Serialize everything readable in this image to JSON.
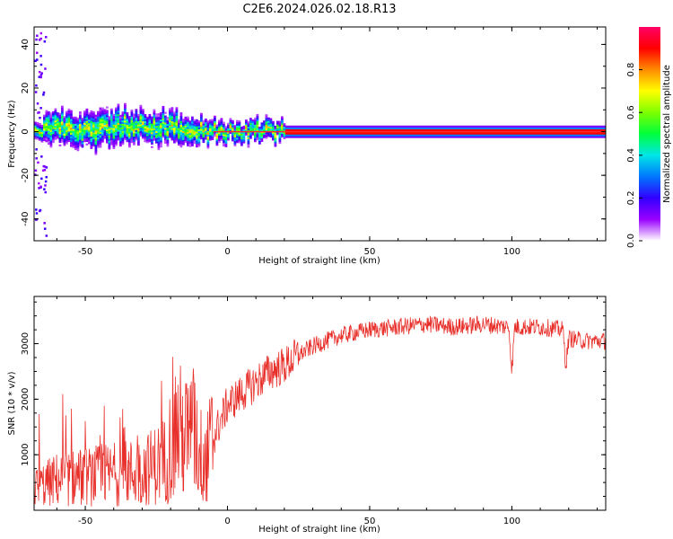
{
  "title": "C2E6.2024.026.02.18.R13",
  "chart_data": [
    {
      "type": "heatmap",
      "xlabel": "Height of straight line (km)",
      "ylabel": "Frequency (Hz)",
      "xlim": [
        -68,
        133
      ],
      "ylim": [
        -50,
        48
      ],
      "x_ticks": [
        -50,
        0,
        50,
        100
      ],
      "y_ticks": [
        -40,
        -20,
        0,
        20,
        40
      ],
      "signal": {
        "description_points": [
          {
            "x": -65,
            "freq": 2,
            "halfwidth": 5
          },
          {
            "x": -50,
            "freq": 1,
            "halfwidth": 6
          },
          {
            "x": -40,
            "freq": 2,
            "halfwidth": 6
          },
          {
            "x": -30,
            "freq": 3,
            "halfwidth": 5
          },
          {
            "x": -20,
            "freq": 2,
            "halfwidth": 5
          },
          {
            "x": -10,
            "freq": 1,
            "halfwidth": 4
          },
          {
            "x": 0,
            "freq": 0,
            "halfwidth": 2
          },
          {
            "x": 10,
            "freq": 1,
            "halfwidth": 3
          },
          {
            "x": 20,
            "freq": 0,
            "halfwidth": 2
          },
          {
            "x": 50,
            "freq": 0,
            "halfwidth": 2
          },
          {
            "x": 100,
            "freq": 0,
            "halfwidth": 2
          },
          {
            "x": 133,
            "freq": 0,
            "halfwidth": 2
          }
        ]
      },
      "colorbar": {
        "label": "Normalized spectral amplitude",
        "range": [
          0,
          1
        ],
        "ticks": [
          "0.0",
          "0.2",
          "0.4",
          "0.6",
          "0.8"
        ],
        "colormap": [
          "#ffffff",
          "#9a00ff",
          "#3200ff",
          "#0078ff",
          "#00e6e6",
          "#00ff3c",
          "#7dff00",
          "#ffff00",
          "#ff8c00",
          "#ff0000",
          "#ff0066"
        ]
      }
    },
    {
      "type": "line",
      "xlabel": "Height of straight line (km)",
      "ylabel": "SNR (10 * v/v)",
      "xlim": [
        -68,
        133
      ],
      "ylim": [
        0,
        3850
      ],
      "x_ticks": [
        -50,
        0,
        50,
        100
      ],
      "y_ticks": [
        1000,
        2000,
        3000
      ],
      "color": "#e8302b",
      "series": [
        {
          "name": "SNR",
          "x": [
            -68,
            -60,
            -50,
            -40,
            -30,
            -22,
            -18,
            -15,
            -12,
            -8,
            -5,
            0,
            5,
            10,
            15,
            20,
            25,
            30,
            40,
            50,
            60,
            70,
            80,
            90,
            99,
            100,
            101,
            110,
            118,
            119,
            120,
            125,
            133
          ],
          "y": [
            400,
            550,
            600,
            650,
            700,
            900,
            1500,
            1300,
            1400,
            800,
            1300,
            1900,
            2100,
            2300,
            2500,
            2600,
            2800,
            2950,
            3150,
            3250,
            3300,
            3350,
            3300,
            3350,
            3300,
            2500,
            3300,
            3300,
            3250,
            2600,
            3100,
            3050,
            3050
          ]
        }
      ]
    }
  ]
}
